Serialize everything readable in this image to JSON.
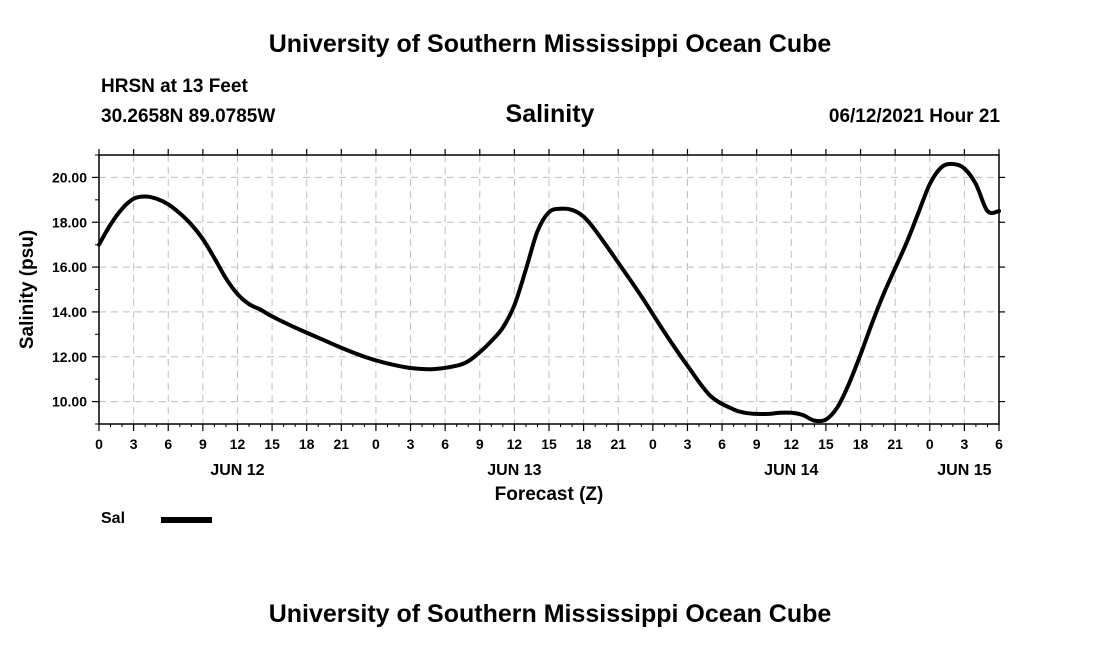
{
  "header": {
    "top_title": "University of Southern Mississippi Ocean Cube",
    "bottom_title": "University of Southern Mississippi Ocean Cube",
    "station": "HRSN at 13 Feet",
    "coords": "30.2658N  89.0785W",
    "issued": "06/12/2021 Hour 21"
  },
  "chart_data": {
    "type": "line",
    "title": "Salinity",
    "xlabel": "Forecast (Z)",
    "ylabel": "Salinity (psu)",
    "xlim": [
      0,
      78
    ],
    "ylim": [
      9.0,
      21.0
    ],
    "y_ticks": [
      10,
      12,
      14,
      16,
      18,
      20
    ],
    "y_tick_labels": [
      "10.00",
      "12.00",
      "14.00",
      "16.00",
      "18.00",
      "20.00"
    ],
    "x_ticks": [
      0,
      3,
      6,
      9,
      12,
      15,
      18,
      21,
      24,
      27,
      30,
      33,
      36,
      39,
      42,
      45,
      48,
      51,
      54,
      57,
      60,
      63,
      66,
      69,
      72,
      75,
      78
    ],
    "x_tick_labels": [
      "0",
      "3",
      "6",
      "9",
      "12",
      "15",
      "18",
      "21",
      "0",
      "3",
      "6",
      "9",
      "12",
      "15",
      "18",
      "21",
      "0",
      "3",
      "6",
      "9",
      "12",
      "15",
      "18",
      "21",
      "0",
      "3",
      "6"
    ],
    "date_labels": [
      {
        "x": 12,
        "text": "JUN 12"
      },
      {
        "x": 36,
        "text": "JUN 13"
      },
      {
        "x": 60,
        "text": "JUN 14"
      },
      {
        "x": 75,
        "text": "JUN 15"
      }
    ],
    "grid": true,
    "legend": [
      {
        "name": "Sal",
        "color": "#000000"
      }
    ],
    "series": [
      {
        "name": "Sal",
        "color": "#000000",
        "x": [
          0,
          1,
          2,
          3,
          4,
          5,
          6,
          7,
          8,
          9,
          10,
          11,
          12,
          13,
          14,
          15,
          17,
          19,
          21,
          23,
          25,
          27,
          29,
          31,
          32,
          33,
          34,
          35,
          36,
          37,
          38,
          39,
          40,
          41,
          42,
          43,
          45,
          47,
          49,
          51,
          53,
          55,
          56,
          57,
          58,
          59,
          60,
          61,
          62,
          63,
          64,
          65,
          66,
          67,
          68,
          69,
          70,
          71,
          72,
          73,
          74,
          75,
          76,
          77,
          78
        ],
        "values": [
          17.0,
          17.9,
          18.6,
          19.05,
          19.15,
          19.05,
          18.8,
          18.4,
          17.9,
          17.25,
          16.4,
          15.5,
          14.8,
          14.35,
          14.1,
          13.8,
          13.3,
          12.85,
          12.4,
          12.0,
          11.7,
          11.5,
          11.45,
          11.6,
          11.8,
          12.2,
          12.7,
          13.3,
          14.3,
          15.9,
          17.6,
          18.45,
          18.6,
          18.55,
          18.25,
          17.65,
          16.2,
          14.7,
          13.1,
          11.6,
          10.25,
          9.65,
          9.5,
          9.45,
          9.45,
          9.5,
          9.5,
          9.4,
          9.15,
          9.2,
          9.75,
          10.8,
          12.1,
          13.5,
          14.8,
          15.95,
          17.1,
          18.4,
          19.7,
          20.45,
          20.6,
          20.4,
          19.7,
          18.5,
          18.5
        ]
      }
    ]
  }
}
